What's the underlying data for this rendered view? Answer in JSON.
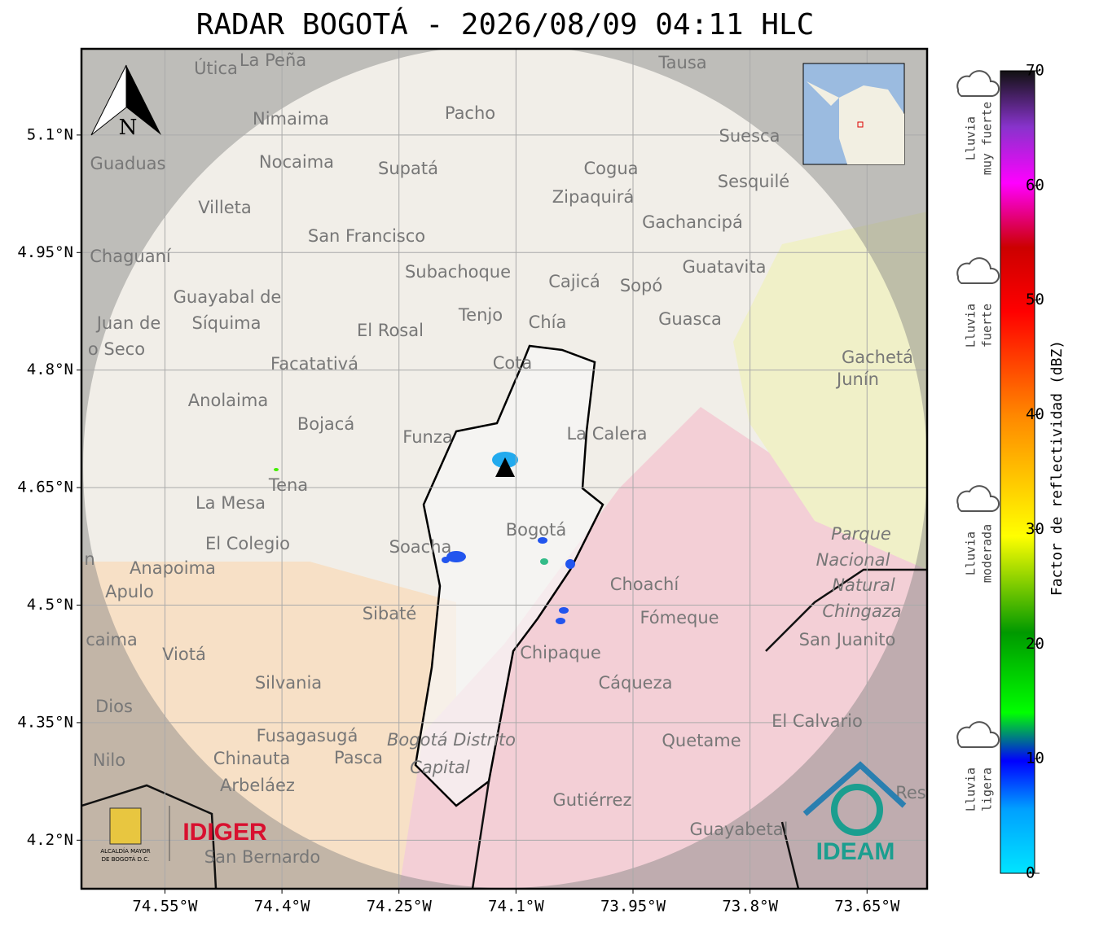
{
  "title": "RADAR BOGOTÁ - 2026/08/09 04:11 HLC",
  "map": {
    "xlim": [
      -74.657,
      -73.573
    ],
    "ylim": [
      4.138,
      5.21
    ],
    "xticks": [
      {
        "value": -74.55,
        "label": "74.55°W"
      },
      {
        "value": -74.4,
        "label": "74.4°W"
      },
      {
        "value": -74.25,
        "label": "74.25°W"
      },
      {
        "value": -74.1,
        "label": "74.1°W"
      },
      {
        "value": -73.95,
        "label": "73.95°W"
      },
      {
        "value": -73.8,
        "label": "73.8°W"
      },
      {
        "value": -73.65,
        "label": "73.65°W"
      }
    ],
    "yticks": [
      {
        "value": 5.1,
        "label": "5.1°N"
      },
      {
        "value": 4.95,
        "label": "4.95°N"
      },
      {
        "value": 4.8,
        "label": "4.8°N"
      },
      {
        "value": 4.65,
        "label": "4.65°N"
      },
      {
        "value": 4.5,
        "label": "4.5°N"
      },
      {
        "value": 4.35,
        "label": "4.35°N"
      },
      {
        "value": 4.2,
        "label": "4.2°N"
      }
    ],
    "places": [
      "Útica",
      "La Peña",
      "Tausa",
      "Pacho",
      "Nimaima",
      "Suesca",
      "Guaduas",
      "Nocaima",
      "Supatá",
      "Cogua",
      "Sesquilé",
      "Zipaquirá",
      "Villeta",
      "Gachancipá",
      "San Francisco",
      "Chaguaní",
      "Guatavita",
      "Subachoque",
      "Cajicá",
      "Sopó",
      "Guayabal de",
      "Síquima",
      "Juan de",
      "Tenjo",
      "Chía",
      "Guasca",
      "El Rosal",
      "o Seco",
      "Facatativá",
      "Cota",
      "Gachetá",
      "Junín",
      "Anolaima",
      "Bojacá",
      "Funza",
      "La Calera",
      "Tena",
      "La Mesa",
      "Bogotá",
      "Parque",
      "Soacha",
      "El Colegio",
      "Nacional",
      "Anapoima",
      "Choachí",
      "Natural",
      "Apulo",
      "Chingaza",
      "Sibaté",
      "Fómeque",
      "San Juanito",
      "caima",
      "Viotá",
      "Chipaque",
      "Silvania",
      "Cáqueza",
      "Dios",
      "El Calvario",
      "Fusagasugá",
      "Bogotá Distrito",
      "Quetame",
      "Nilo",
      "Chinauta",
      "Pasca",
      "Capital",
      "Arbeláez",
      "Gutiérrez",
      "Res",
      "Guayabetal",
      "San Bernardo",
      "n"
    ],
    "north": "N"
  },
  "logos": {
    "alcaldia": [
      "ALCALDÍA MAYOR",
      "DE BOGOTÁ D.C."
    ],
    "idiger": "IDIGER",
    "ideam": "IDEAM"
  },
  "colorbar": {
    "label": "Factor de reflectividad (dBZ)",
    "lim": [
      0,
      70
    ],
    "ticks": [
      0,
      10,
      20,
      30,
      40,
      50,
      60,
      70
    ]
  },
  "rain_levels": [
    [
      "Lluvia",
      "muy fuerte"
    ],
    [
      "Lluvia",
      "fuerte"
    ],
    [
      "Lluvia",
      "moderada"
    ],
    [
      "Lluvia",
      "ligera"
    ]
  ]
}
